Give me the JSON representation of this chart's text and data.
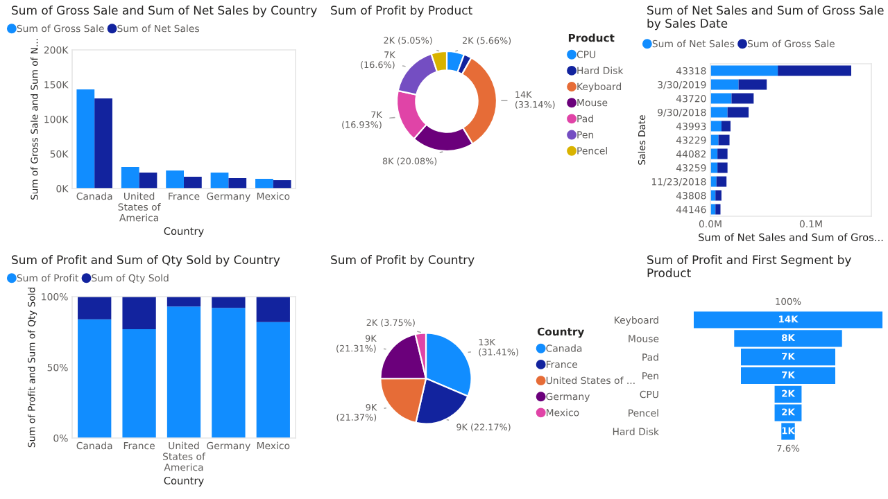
{
  "chart_data": [
    {
      "type": "bar",
      "title": "Sum of Gross Sale and Sum of Net Sales by Country",
      "xlabel": "Country",
      "ylabel": "Sum of Gross Sale and Sum of N...",
      "categories": [
        "Canada",
        "United States of America",
        "France",
        "Germany",
        "Mexico"
      ],
      "series": [
        {
          "name": "Sum of Gross Sale",
          "color": "#118dff",
          "values": [
            143000,
            31000,
            26000,
            23000,
            14000
          ]
        },
        {
          "name": "Sum of Net Sales",
          "color": "#12239e",
          "values": [
            130000,
            23000,
            17000,
            15000,
            12000
          ]
        }
      ],
      "ylim": [
        0,
        200000
      ],
      "yticks": [
        {
          "value": 0,
          "label": "0K"
        },
        {
          "value": 50000,
          "label": "50K"
        },
        {
          "value": 100000,
          "label": "100K"
        },
        {
          "value": 150000,
          "label": "150K"
        },
        {
          "value": 200000,
          "label": "200K"
        }
      ],
      "legend": "top"
    },
    {
      "type": "donut",
      "title": "Sum of Profit by Product",
      "legend_title": "Product",
      "legend": "right",
      "categories": [
        "CPU",
        "Hard Disk",
        "Keyboard",
        "Mouse",
        "Pad",
        "Pen",
        "Pencel"
      ],
      "values": [
        5.66,
        2.54,
        33.14,
        20.08,
        16.93,
        16.6,
        5.05
      ],
      "colors": [
        "#118dff",
        "#12239e",
        "#e66c37",
        "#6b007b",
        "#e044a7",
        "#744ec2",
        "#d9b300"
      ],
      "value_labels": [
        "2K (5.66%)",
        null,
        "14K (33.14%)",
        "8K (20.08%)",
        "7K (16.93%)",
        "7K (16.6%)",
        "2K (5.05%)"
      ]
    },
    {
      "type": "bar",
      "orientation": "horizontal",
      "stacked": true,
      "title": "Sum of Net Sales and Sum of Gross Sale by Sales Date",
      "xlabel": "Sum of Net Sales and Sum of Gros...",
      "ylabel": "Sales Date",
      "categories": [
        "43318",
        "3/30/2019",
        "43720",
        "9/30/2018",
        "43993",
        "43229",
        "44082",
        "43259",
        "11/23/2018",
        "43808",
        "44146"
      ],
      "series": [
        {
          "name": "Sum of Net Sales",
          "color": "#118dff",
          "values": [
            67000,
            28000,
            21000,
            17000,
            11000,
            8000,
            7000,
            7000,
            6000,
            5000,
            5000
          ]
        },
        {
          "name": "Sum of Gross Sale",
          "color": "#12239e",
          "values": [
            73000,
            28000,
            22000,
            21000,
            9000,
            11000,
            10000,
            10000,
            10000,
            6000,
            5000
          ]
        }
      ],
      "xlim": [
        0,
        160000
      ],
      "xticks": [
        {
          "value": 0,
          "label": "0.0M"
        },
        {
          "value": 100000,
          "label": "0.1M"
        }
      ],
      "legend": "top"
    },
    {
      "type": "bar",
      "stacked": true,
      "title": "Sum of Profit and Sum of Qty Sold by Country",
      "xlabel": "Country",
      "ylabel": "Sum of Profit and Sum of Qty Sold",
      "categories": [
        "Canada",
        "France",
        "United States of America",
        "Germany",
        "Mexico"
      ],
      "series": [
        {
          "name": "Sum of Profit",
          "color": "#118dff",
          "values": [
            84,
            77,
            93,
            92,
            82
          ]
        },
        {
          "name": "Sum of Qty Sold",
          "color": "#12239e",
          "values": [
            16,
            23,
            7,
            8,
            18
          ]
        }
      ],
      "ylim": [
        0,
        100
      ],
      "yticks": [
        {
          "value": 0,
          "label": "0%"
        },
        {
          "value": 50,
          "label": "50%"
        },
        {
          "value": 100,
          "label": "100%"
        }
      ],
      "legend": "top"
    },
    {
      "type": "pie",
      "title": "Sum of Profit by Country",
      "legend_title": "Country",
      "legend": "right",
      "categories": [
        "Canada",
        "France",
        "United States of ...",
        "Germany",
        "Mexico"
      ],
      "values": [
        31.41,
        22.17,
        21.37,
        21.31,
        3.75
      ],
      "colors": [
        "#118dff",
        "#12239e",
        "#e66c37",
        "#6b007b",
        "#e044a7"
      ],
      "value_labels": [
        "13K (31.41%)",
        "9K (22.17%)",
        "9K (21.37%)",
        "9K (21.31%)",
        "2K (3.75%)"
      ]
    },
    {
      "type": "other",
      "title": "Sum of Profit and First Segment by Product",
      "categories": [
        "Keyboard",
        "Mouse",
        "Pad",
        "Pen",
        "CPU",
        "Pencel",
        "Hard Disk"
      ],
      "values": [
        14000,
        8000,
        7000,
        7000,
        2000,
        2000,
        1000
      ],
      "color": "#118dff",
      "value_labels": [
        "14K",
        "8K",
        "7K",
        "7K",
        "2K",
        "2K",
        "1K"
      ],
      "annotations": [
        "100%",
        "7.6%"
      ]
    }
  ]
}
